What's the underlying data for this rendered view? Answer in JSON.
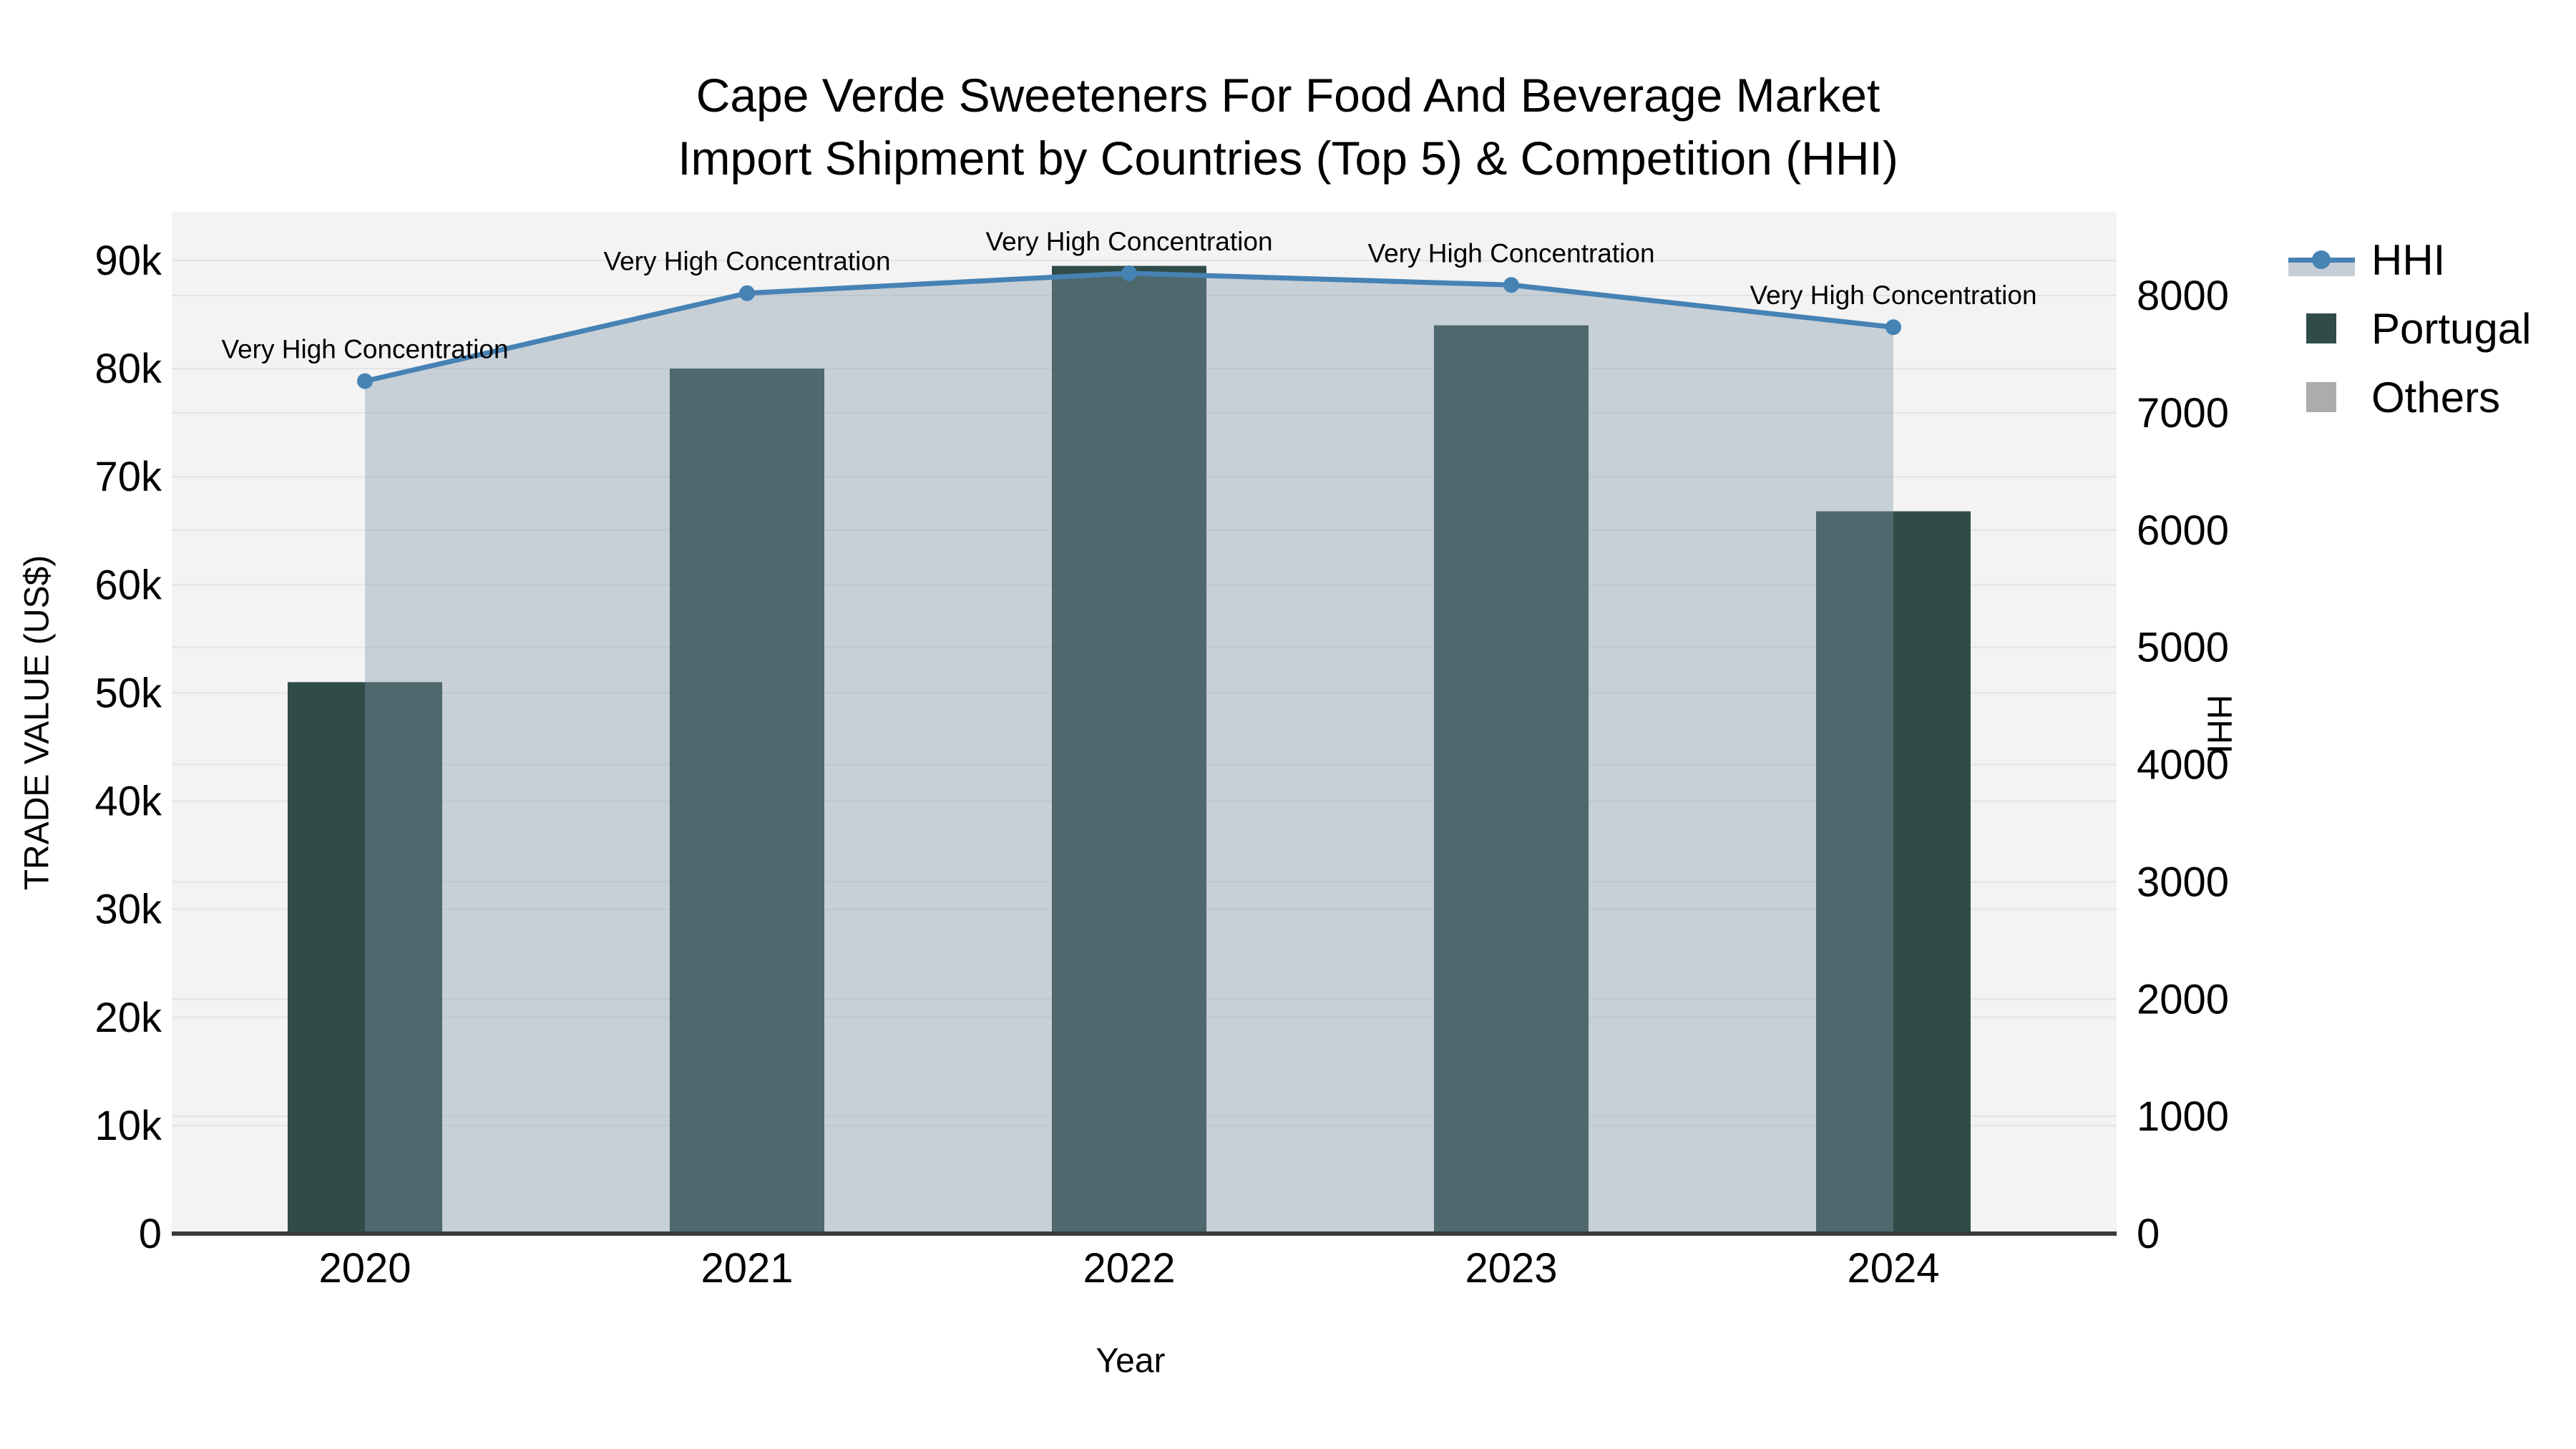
{
  "header": {
    "title_line1": "Cape Verde Sweeteners For Food And Beverage Market",
    "title_line2": "Import Shipment by Countries (Top 5) & Competition (HHI)"
  },
  "axes": {
    "x_title": "Year",
    "y_left_title": "TRADE VALUE (US$)",
    "y_right_title": "HHI"
  },
  "legend": {
    "items": [
      {
        "label": "HHI"
      },
      {
        "label": "Portugal"
      },
      {
        "label": "Others"
      }
    ]
  },
  "colors": {
    "portugal_bar": "#2F4C49",
    "others_swatch": "#ACACAC",
    "hhi_line": "#4682B4",
    "hhi_area_overlay": "rgba(130,150,171,0.38)",
    "legend_area_band": "#C7CDD6",
    "plot_background": "#F3F3F3",
    "gridline": "#E4E4E4",
    "axis_line": "#3A3A3A"
  },
  "chart_data": {
    "type": "bar",
    "subtype": "bars with dual-axis line+area overlay",
    "title": "Cape Verde Sweeteners For Food And Beverage Market",
    "subtitle": "Import Shipment by Countries (Top 5) & Competition (HHI)",
    "xlabel": "Year",
    "ylabel_left": "TRADE VALUE (US$)",
    "ylabel_right": "HHI",
    "categories": [
      "2020",
      "2021",
      "2022",
      "2023",
      "2024"
    ],
    "series": [
      {
        "name": "Portugal",
        "kind": "bar",
        "axis": "left",
        "color": "#2F4C49",
        "values": [
          51000,
          80000,
          89500,
          84000,
          66800
        ]
      },
      {
        "name": "Others",
        "kind": "bar",
        "axis": "left",
        "color": "#ACACAC",
        "values": [
          0,
          0,
          0,
          0,
          0
        ]
      },
      {
        "name": "HHI",
        "kind": "line+area",
        "axis": "right",
        "color": "#4682B4",
        "area_color": "rgba(130,150,171,0.38)",
        "values": [
          7270,
          8020,
          8190,
          8090,
          7730
        ]
      }
    ],
    "annotations": [
      "Very High Concentration",
      "Very High Concentration",
      "Very High Concentration",
      "Very High Concentration",
      "Very High Concentration"
    ],
    "y_left_ticks": [
      "0",
      "10k",
      "20k",
      "30k",
      "40k",
      "50k",
      "60k",
      "70k",
      "80k",
      "90k"
    ],
    "y_right_ticks": [
      "0",
      "1000",
      "2000",
      "3000",
      "4000",
      "5000",
      "6000",
      "7000",
      "8000"
    ],
    "ylim_left": [
      0,
      90000
    ],
    "ylim_right": [
      0,
      8000
    ],
    "grid": true,
    "legend_position": "right-top"
  }
}
